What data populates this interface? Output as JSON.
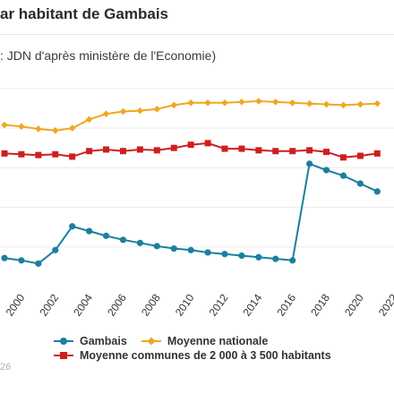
{
  "page": {
    "title": "ar habitant de Gambais",
    "source": ": JDN d'après ministère de l'Economie)",
    "footer": "26"
  },
  "chart_data": {
    "type": "line",
    "x": [
      1999,
      2000,
      2001,
      2002,
      2003,
      2004,
      2005,
      2006,
      2007,
      2008,
      2009,
      2010,
      2011,
      2012,
      2013,
      2014,
      2015,
      2016,
      2017,
      2018,
      2019,
      2020,
      2021
    ],
    "xticks": [
      "2000",
      "2002",
      "2004",
      "2006",
      "2008",
      "2010",
      "2012",
      "2014",
      "2016",
      "2018",
      "2020",
      "2022"
    ],
    "xlim": [
      1999,
      2022.2
    ],
    "ylim": [
      0,
      260
    ],
    "grid": true,
    "legend_position": "bottom",
    "series": [
      {
        "name": "Gambais",
        "color": "#1a7fa0",
        "marker": "circle",
        "values": [
          36,
          33,
          29,
          46,
          76,
          70,
          64,
          59,
          55,
          51,
          48,
          46,
          43,
          41,
          39,
          37,
          35,
          33,
          155,
          147,
          140,
          130,
          120
        ]
      },
      {
        "name": "Moyenne nationale",
        "color": "#f0a81e",
        "marker": "diamond",
        "values": [
          204,
          202,
          199,
          197,
          200,
          211,
          218,
          221,
          222,
          224,
          229,
          232,
          232,
          232,
          233,
          234,
          233,
          232,
          231,
          230,
          229,
          230,
          231
        ]
      },
      {
        "name": "Moyenne communes de 2 000 à 3 500 habitants",
        "color": "#d01e1e",
        "marker": "square",
        "values": [
          168,
          167,
          166,
          167,
          164,
          171,
          173,
          171,
          173,
          172,
          175,
          179,
          181,
          174,
          174,
          172,
          171,
          171,
          172,
          170,
          163,
          165,
          168
        ]
      }
    ]
  }
}
